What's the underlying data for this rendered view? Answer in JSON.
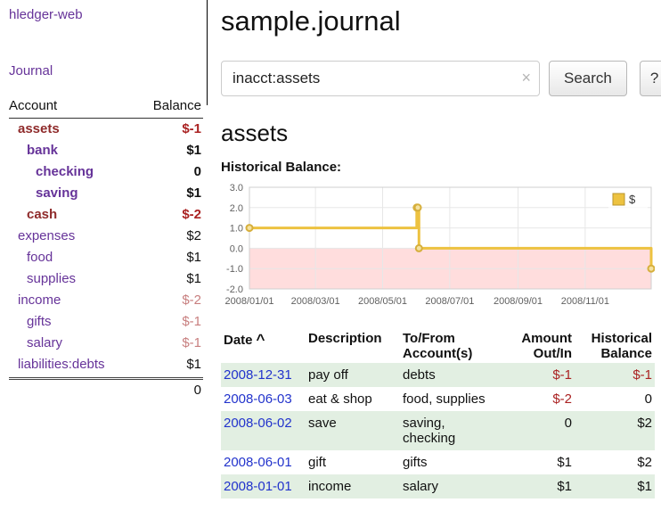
{
  "app": {
    "title": "hledger-web"
  },
  "colors": {
    "link_purple": "#663399",
    "negative_bold": "#aa2222",
    "negative_muted": "#c87f7f",
    "account_negative_name": "#8f2b2b",
    "date_link_blue": "#2233cc",
    "row_stripe_green": "#e2efe2"
  },
  "sidebar": {
    "journal_link": "Journal",
    "table": {
      "col_account": "Account",
      "col_balance": "Balance",
      "rows": [
        {
          "name": "assets",
          "balance": "$-1"
        },
        {
          "name": "bank",
          "balance": "$1"
        },
        {
          "name": "checking",
          "balance": "0"
        },
        {
          "name": "saving",
          "balance": "$1"
        },
        {
          "name": "cash",
          "balance": "$-2"
        },
        {
          "name": "expenses",
          "balance": "$2"
        },
        {
          "name": "food",
          "balance": "$1"
        },
        {
          "name": "supplies",
          "balance": "$1"
        },
        {
          "name": "income",
          "balance": "$-2"
        },
        {
          "name": "gifts",
          "balance": "$-1"
        },
        {
          "name": "salary",
          "balance": "$-1"
        },
        {
          "name": "liabilities:debts",
          "balance": "$1"
        }
      ],
      "total": "0"
    }
  },
  "header": {
    "title": "sample.journal"
  },
  "search": {
    "value": "inacct:assets",
    "clear_icon": "×",
    "button": "Search",
    "help_button": "?"
  },
  "account_page": {
    "title": "assets",
    "chart_label": "Historical Balance:"
  },
  "chart_data": {
    "type": "line",
    "title": "Historical Balance",
    "series": [
      {
        "name": "$",
        "step": true,
        "points": [
          {
            "date": "2008-01-01",
            "value": 1
          },
          {
            "date": "2008-06-01",
            "value": 2
          },
          {
            "date": "2008-06-02",
            "value": 2
          },
          {
            "date": "2008-06-03",
            "value": 0
          },
          {
            "date": "2008-12-31",
            "value": -1
          }
        ]
      }
    ],
    "x_ticks": [
      "2008/01/01",
      "2008/03/01",
      "2008/05/01",
      "2008/07/01",
      "2008/09/01",
      "2008/11/01"
    ],
    "y_ticks": [
      3.0,
      2.0,
      1.0,
      0.0,
      -1.0,
      -2.0
    ],
    "ylim": [
      -2,
      3
    ],
    "xlim": [
      "2008-01-01",
      "2008-12-31"
    ],
    "grid": true,
    "legend": {
      "label": "$",
      "position": "top-right"
    },
    "colors": {
      "line": "#edc240",
      "marker_fill": "#f5e2a0",
      "marker_stroke": "#d6af3c",
      "negative_region": "#ffdddd"
    }
  },
  "register": {
    "headers": {
      "date": "Date",
      "sort_icon": "^",
      "description": "Description",
      "tofrom": "To/From Account(s)",
      "amount": "Amount Out/In",
      "balance": "Historical Balance"
    },
    "rows": [
      {
        "date": "2008-12-31",
        "description": "pay off",
        "accounts": "debts",
        "amount": "$-1",
        "balance": "$-1"
      },
      {
        "date": "2008-06-03",
        "description": "eat & shop",
        "accounts": "food, supplies",
        "amount": "$-2",
        "balance": "0"
      },
      {
        "date": "2008-06-02",
        "description": "save",
        "accounts": "saving, checking",
        "amount": "0",
        "balance": "$2"
      },
      {
        "date": "2008-06-01",
        "description": "gift",
        "accounts": "gifts",
        "amount": "$1",
        "balance": "$2"
      },
      {
        "date": "2008-01-01",
        "description": "income",
        "accounts": "salary",
        "amount": "$1",
        "balance": "$1"
      }
    ]
  }
}
